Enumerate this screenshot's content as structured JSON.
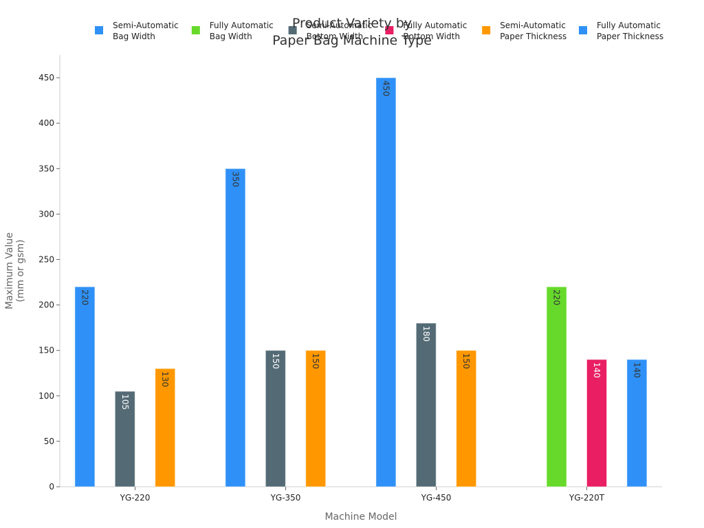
{
  "chart_data": {
    "type": "bar",
    "title": [
      "Product Variety by",
      "Paper Bag Machine Type"
    ],
    "xlabel": "Machine Model",
    "ylabel": [
      "Maximum Value",
      "(mm or gsm)"
    ],
    "categories": [
      "YG-220",
      "YG-350",
      "YG-450",
      "YG-220T"
    ],
    "ylim": [
      0,
      475
    ],
    "yticks": [
      0,
      50,
      100,
      150,
      200,
      250,
      300,
      350,
      400,
      450
    ],
    "grid": false,
    "legend_position": "top",
    "series": [
      {
        "name": [
          "Semi-Automatic",
          "Bag Width"
        ],
        "color": "#2F91F7",
        "label_color": "#333333",
        "values": [
          220,
          350,
          450,
          null
        ]
      },
      {
        "name": [
          "Fully Automatic",
          "Bag Width"
        ],
        "color": "#66D92B",
        "label_color": "#333333",
        "values": [
          null,
          null,
          null,
          220
        ]
      },
      {
        "name": [
          "Semi-Automatic",
          "Bottom Width"
        ],
        "color": "#546B75",
        "label_color": "#ffffff",
        "values": [
          105,
          150,
          180,
          null
        ]
      },
      {
        "name": [
          "Fully Automatic",
          "Bottom Width"
        ],
        "color": "#E91E63",
        "label_color": "#ffffff",
        "values": [
          null,
          null,
          null,
          140
        ]
      },
      {
        "name": [
          "Semi-Automatic",
          "Paper Thickness"
        ],
        "color": "#FF9800",
        "label_color": "#333333",
        "values": [
          130,
          150,
          150,
          null
        ]
      },
      {
        "name": [
          "Fully Automatic",
          "Paper Thickness"
        ],
        "color": "#2F91F7",
        "label_color": "#333333",
        "values": [
          null,
          null,
          null,
          140
        ]
      }
    ]
  }
}
